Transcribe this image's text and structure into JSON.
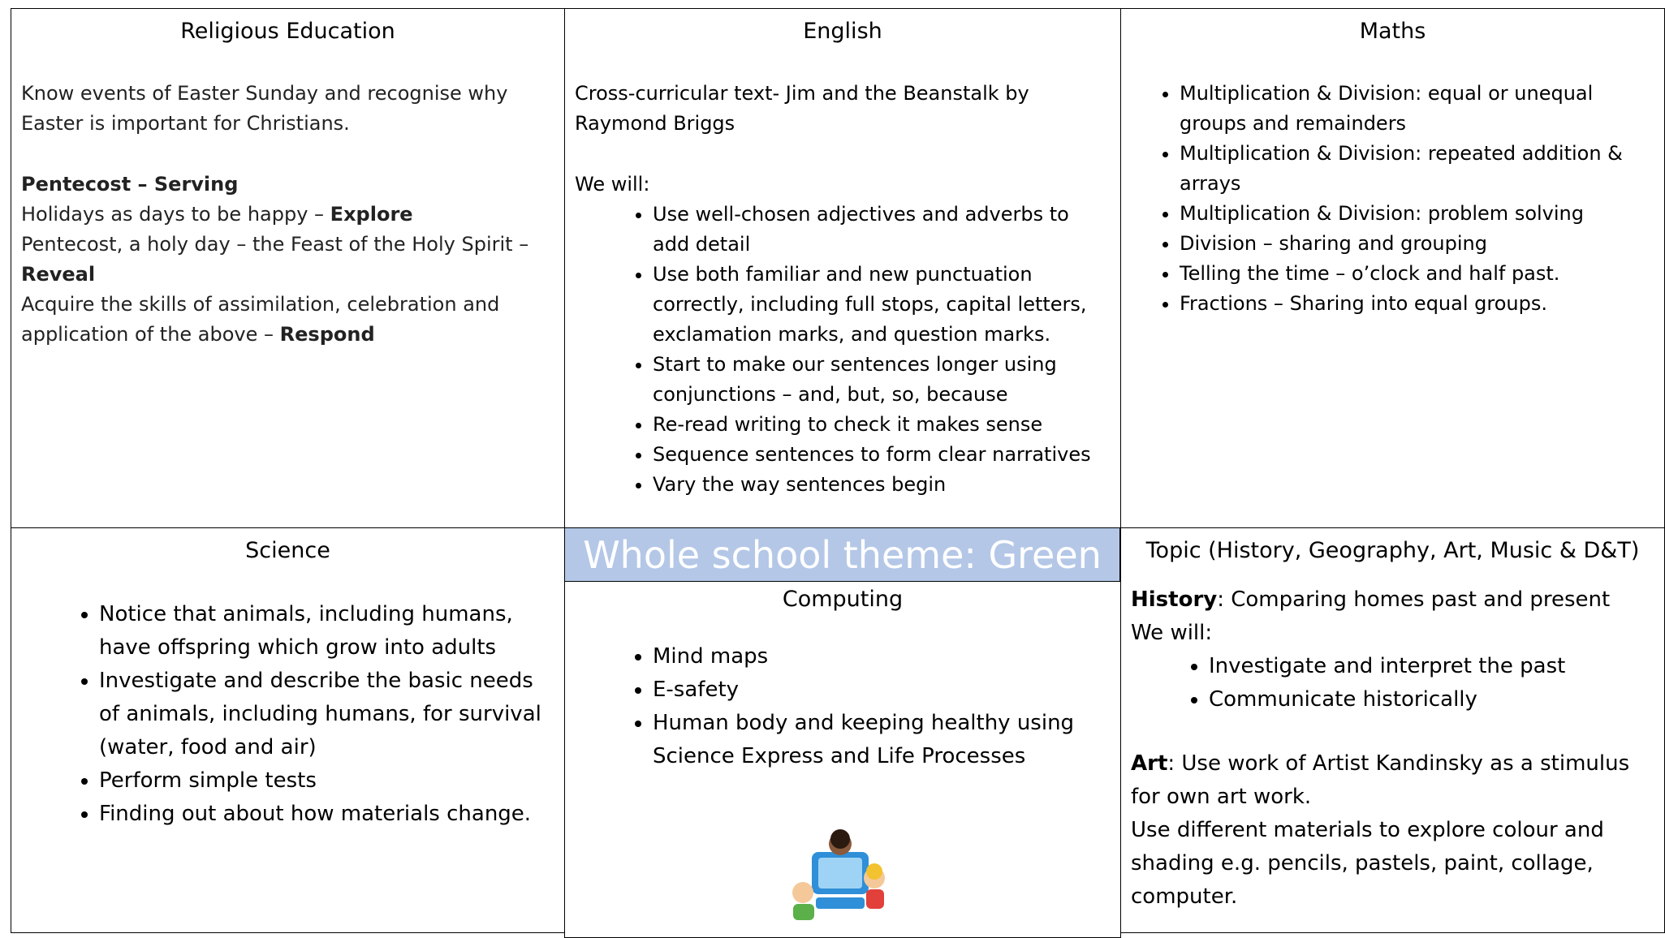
{
  "cells": [
    {
      "title": "Religious Education",
      "blocks": [
        {
          "runs": [
            {
              "t": "Know events of Easter Sunday and recognise why Easter is important for Christians."
            }
          ]
        },
        {
          "runs": [
            {
              "b": "Pentecost – Serving"
            }
          ]
        },
        {
          "runs": [
            {
              "t": "Holidays as days to be happy – "
            },
            {
              "b": "Explore"
            }
          ]
        },
        {
          "runs": [
            {
              "t": "Pentecost, a holy day – the Feast of the Holy Spirit – "
            },
            {
              "b": "Reveal"
            }
          ]
        },
        {
          "runs": [
            {
              "t": "Acquire the skills of assimilation, celebration and application of the above – "
            },
            {
              "b": "Respond"
            }
          ]
        }
      ]
    },
    {
      "title": "English",
      "blocks": [
        {
          "runs": [
            {
              "t": "Cross-curricular text- Jim and the Beanstalk by Raymond Briggs"
            }
          ]
        },
        {
          "runs": [
            {
              "t": "We will:"
            }
          ]
        },
        {
          "items": [
            "Use well-chosen adjectives and adverbs to add detail",
            "Use both familiar and new punctuation correctly, including full stops, capital letters, exclamation marks, and question marks.",
            "Start to make our sentences longer using conjunctions – and, but, so, because",
            "Re-read writing to check it makes sense",
            "Sequence sentences to form clear narratives",
            "Vary the way sentences begin"
          ]
        }
      ]
    },
    {
      "title": "Maths",
      "blocks": [
        {
          "items": [
            "Multiplication & Division: equal or unequal groups and remainders",
            "Multiplication & Division: repeated addition & arrays",
            "Multiplication & Division: problem solving",
            "Division – sharing and grouping",
            "Telling the time – o’clock and half past.",
            "Fractions – Sharing into equal groups."
          ]
        }
      ]
    },
    {
      "title": "Science",
      "blocks": [
        {
          "items": [
            "Notice that animals, including humans, have offspring which grow into adults",
            "Investigate and describe the basic needs of animals, including humans, for survival (water, food and air)",
            "Perform simple tests",
            "Finding out about how materials change."
          ]
        }
      ]
    },
    {
      "title": "Computing",
      "blocks": [
        {
          "items": [
            "Mind maps",
            "E-safety",
            "Human body and keeping healthy using Science Express and Life Processes"
          ]
        }
      ]
    },
    {
      "title": "Topic (History, Geography, Art, Music & D&T)",
      "blocks": [
        {
          "runs": [
            {
              "b": "History"
            },
            {
              "t": ": Comparing homes past and present"
            }
          ]
        },
        {
          "runs": [
            {
              "t": "We will:"
            }
          ]
        },
        {
          "items": [
            "Investigate and interpret the past",
            "Communicate historically"
          ]
        },
        {
          "runs": [
            {
              "b": "Art"
            },
            {
              "t": ": Use work of Artist Kandinsky as a stimulus for own art work."
            }
          ]
        },
        {
          "runs": [
            {
              "t": "Use different materials to explore colour and shading e.g. pencils, pastels, paint, collage, computer."
            }
          ]
        }
      ]
    }
  ],
  "banner": "Whole school theme: Green"
}
